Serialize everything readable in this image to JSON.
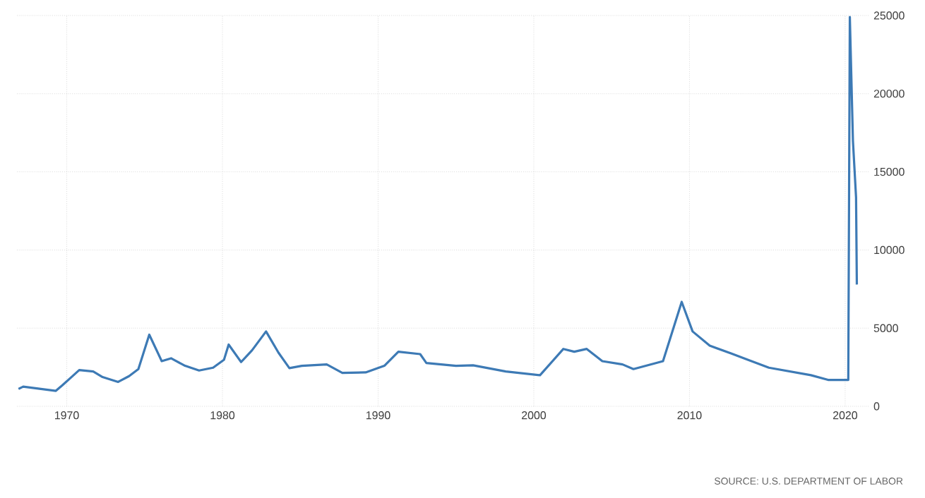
{
  "chart_data": {
    "type": "line",
    "x": [
      1966.9,
      1967.2,
      1969.3,
      1969.7,
      1970.3,
      1970.8,
      1971.7,
      1972.3,
      1973.3,
      1974.0,
      1974.6,
      1975.3,
      1976.1,
      1976.7,
      1977.6,
      1978.5,
      1979.4,
      1980.1,
      1980.4,
      1981.2,
      1981.9,
      1982.8,
      1983.6,
      1984.3,
      1985.1,
      1986.7,
      1987.7,
      1989.2,
      1990.4,
      1991.3,
      1992.7,
      1993.1,
      1995.0,
      1996.1,
      1998.2,
      2000.4,
      2001.9,
      2002.6,
      2003.4,
      2004.4,
      2005.7,
      2006.4,
      2008.3,
      2009.5,
      2010.2,
      2011.3,
      2012.7,
      2015.1,
      2017.8,
      2018.9,
      2020.2,
      2020.3,
      2020.5,
      2020.7,
      2020.75
    ],
    "series": [
      {
        "color": "#3d7ab5",
        "values": [
          1110,
          1260,
          990,
          1330,
          1870,
          2320,
          2230,
          1870,
          1560,
          1930,
          2380,
          4580,
          2890,
          3070,
          2590,
          2290,
          2470,
          2980,
          3950,
          2830,
          3580,
          4790,
          3430,
          2440,
          2590,
          2680,
          2140,
          2170,
          2590,
          3490,
          3340,
          2770,
          2590,
          2620,
          2230,
          1990,
          3670,
          3490,
          3670,
          2890,
          2680,
          2380,
          2890,
          6680,
          4790,
          3880,
          3370,
          2470,
          1990,
          1690,
          1690,
          24900,
          16980,
          13360,
          7790
        ]
      }
    ],
    "xlim": [
      1966.8,
      2021.5
    ],
    "ylim": [
      0,
      25000
    ],
    "xticks": [
      1970,
      1980,
      1990,
      2000,
      2010,
      2020
    ],
    "yticks": [
      0,
      5000,
      10000,
      15000,
      20000,
      25000
    ],
    "grid": true,
    "line_style": "solid",
    "annotations": [
      "SOURCE: U.S. DEPARTMENT OF LABOR"
    ]
  }
}
